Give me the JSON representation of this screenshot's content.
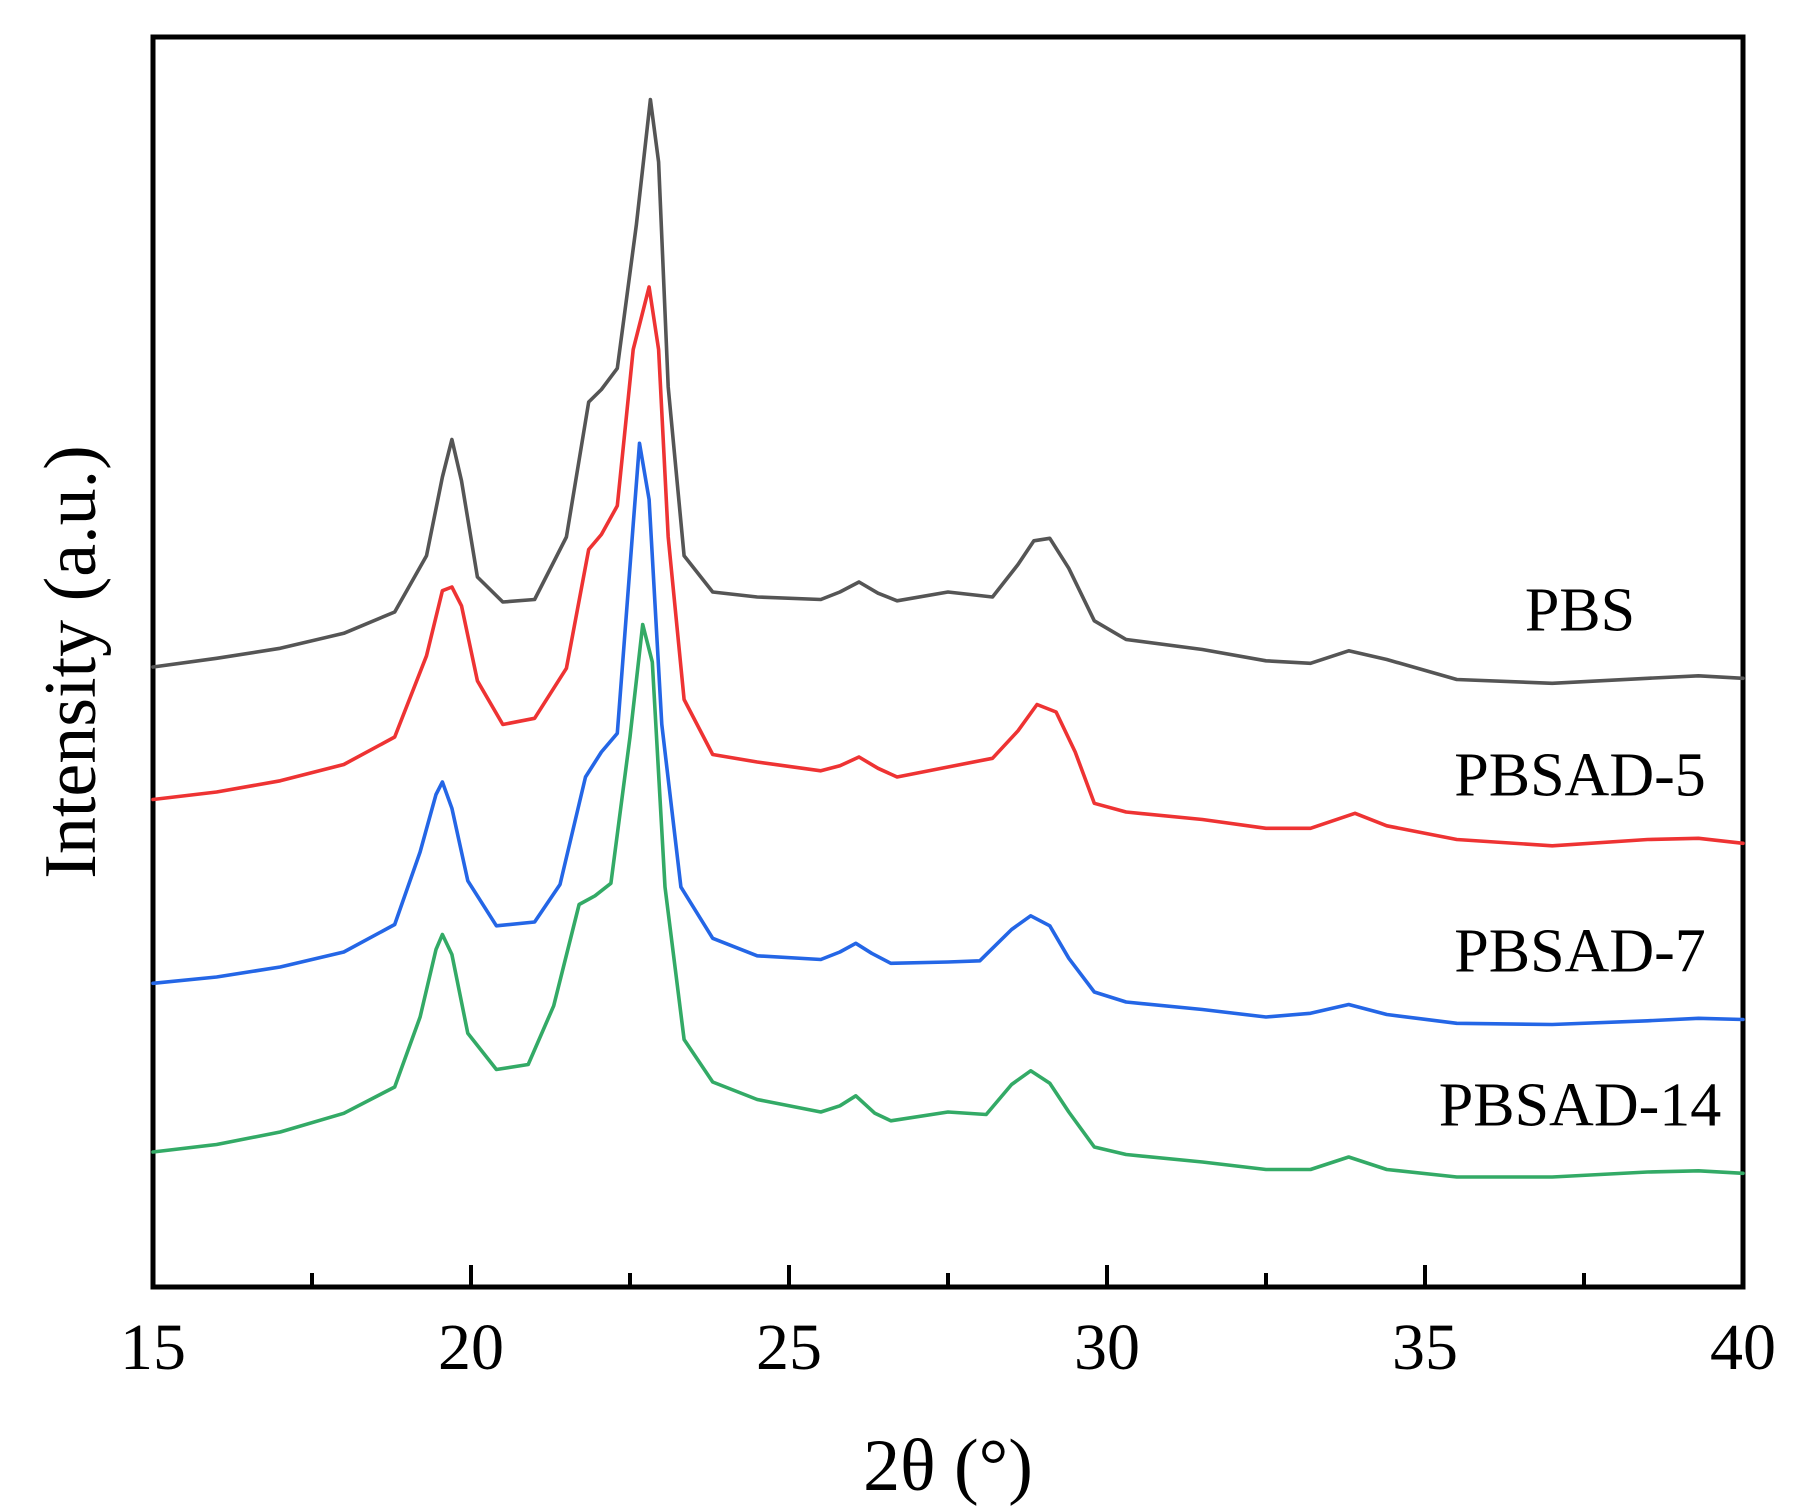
{
  "chart_data": {
    "type": "line",
    "title": "",
    "xlabel": "2θ (°)",
    "ylabel": "Intensity (a.u.)",
    "xlim": [
      15,
      40
    ],
    "ylim": [
      0,
      100
    ],
    "xticks": [
      15,
      20,
      25,
      30,
      35,
      40
    ],
    "xtick_labels": [
      "15",
      "20",
      "25",
      "30",
      "35",
      "40"
    ],
    "minor_xticks": [
      17.5,
      22.5,
      27.5,
      32.5,
      37.5
    ],
    "grid": false,
    "legend": "inline labels at right of each curve",
    "series": [
      {
        "name": "PBS",
        "label": "PBS",
        "color": "#555555",
        "x": [
          15,
          16,
          17,
          18,
          18.8,
          19.3,
          19.55,
          19.7,
          19.85,
          20.1,
          20.5,
          21,
          21.5,
          21.85,
          22.05,
          22.3,
          22.6,
          22.82,
          22.95,
          23.1,
          23.35,
          23.8,
          24.5,
          25.5,
          25.8,
          26.1,
          26.4,
          26.7,
          27.5,
          28.2,
          28.6,
          28.85,
          29.1,
          29.4,
          29.8,
          30.3,
          31.5,
          32.5,
          33.2,
          33.8,
          34.4,
          35.5,
          37,
          38.5,
          39.3,
          40
        ],
        "y": [
          49.6,
          50.3,
          51.1,
          52.3,
          54.0,
          58.5,
          64.8,
          67.8,
          64.5,
          56.8,
          54.8,
          55.0,
          60.0,
          70.8,
          71.8,
          73.5,
          85.0,
          95.0,
          90.0,
          72.0,
          58.5,
          55.6,
          55.2,
          55.0,
          55.6,
          56.4,
          55.5,
          54.9,
          55.6,
          55.2,
          57.8,
          59.7,
          59.9,
          57.5,
          53.3,
          51.8,
          51.0,
          50.1,
          49.9,
          50.9,
          50.2,
          48.6,
          48.3,
          48.7,
          48.9,
          48.7
        ]
      },
      {
        "name": "PBSAD-5",
        "label": "PBSAD-5",
        "color": "#ee3333",
        "x": [
          15,
          16,
          17,
          18,
          18.8,
          19.3,
          19.55,
          19.7,
          19.85,
          20.1,
          20.5,
          21,
          21.5,
          21.85,
          22.05,
          22.3,
          22.55,
          22.8,
          22.95,
          23.1,
          23.35,
          23.8,
          24.5,
          25.5,
          25.8,
          26.1,
          26.4,
          26.7,
          27.5,
          28.2,
          28.6,
          28.9,
          29.2,
          29.5,
          29.8,
          30.3,
          31.5,
          32.5,
          33.2,
          33.9,
          34.4,
          35.5,
          37,
          38.5,
          39.3,
          40
        ],
        "y": [
          39.0,
          39.6,
          40.5,
          41.8,
          44.0,
          50.5,
          55.7,
          56.0,
          54.5,
          48.5,
          45.0,
          45.5,
          49.5,
          59.0,
          60.2,
          62.5,
          75.0,
          80.0,
          75.0,
          60.0,
          47.0,
          42.6,
          42.0,
          41.3,
          41.7,
          42.4,
          41.5,
          40.8,
          41.6,
          42.3,
          44.5,
          46.6,
          46.0,
          42.8,
          38.7,
          38.0,
          37.4,
          36.7,
          36.7,
          37.9,
          36.9,
          35.8,
          35.3,
          35.8,
          35.9,
          35.5
        ]
      },
      {
        "name": "PBSAD-7",
        "label": "PBSAD-7",
        "color": "#2466e6",
        "x": [
          15,
          16,
          17,
          18,
          18.8,
          19.2,
          19.45,
          19.55,
          19.7,
          19.95,
          20.4,
          21,
          21.4,
          21.8,
          22.05,
          22.3,
          22.55,
          22.65,
          22.8,
          23.0,
          23.3,
          23.8,
          24.5,
          25.5,
          25.8,
          26.05,
          26.3,
          26.6,
          27.5,
          28.0,
          28.5,
          28.8,
          29.1,
          29.4,
          29.8,
          30.3,
          31.5,
          32.5,
          33.2,
          33.8,
          34.4,
          35.5,
          37,
          38.5,
          39.3,
          40
        ],
        "y": [
          24.3,
          24.8,
          25.6,
          26.8,
          29.0,
          34.8,
          39.4,
          40.4,
          38.3,
          32.5,
          28.9,
          29.2,
          32.2,
          40.8,
          42.8,
          44.3,
          61.0,
          67.5,
          63.0,
          45.0,
          32.0,
          27.9,
          26.5,
          26.2,
          26.8,
          27.5,
          26.7,
          25.9,
          26.0,
          26.1,
          28.6,
          29.7,
          28.9,
          26.3,
          23.6,
          22.8,
          22.2,
          21.6,
          21.9,
          22.6,
          21.8,
          21.1,
          21.0,
          21.3,
          21.5,
          21.4
        ]
      },
      {
        "name": "PBSAD-14",
        "label": "PBSAD-14",
        "color": "#33aa66",
        "x": [
          15,
          16,
          17,
          18,
          18.8,
          19.2,
          19.45,
          19.55,
          19.7,
          19.95,
          20.4,
          20.9,
          21.3,
          21.7,
          21.95,
          22.2,
          22.5,
          22.7,
          22.85,
          23.05,
          23.35,
          23.8,
          24.5,
          25.5,
          25.8,
          26.05,
          26.35,
          26.6,
          27.5,
          28.1,
          28.5,
          28.8,
          29.1,
          29.4,
          29.8,
          30.3,
          31.5,
          32.5,
          33.2,
          33.8,
          34.4,
          35.5,
          37,
          38.5,
          39.3,
          40
        ],
        "y": [
          10.8,
          11.4,
          12.4,
          13.9,
          16.0,
          21.6,
          27.0,
          28.2,
          26.6,
          20.3,
          17.4,
          17.8,
          22.5,
          30.6,
          31.3,
          32.3,
          44.0,
          53.0,
          50.0,
          32.0,
          19.8,
          16.4,
          15.0,
          14.0,
          14.5,
          15.3,
          13.9,
          13.3,
          14.0,
          13.8,
          16.2,
          17.3,
          16.3,
          14.0,
          11.2,
          10.6,
          10.0,
          9.4,
          9.4,
          10.4,
          9.4,
          8.8,
          8.8,
          9.2,
          9.3,
          9.1
        ]
      }
    ]
  }
}
